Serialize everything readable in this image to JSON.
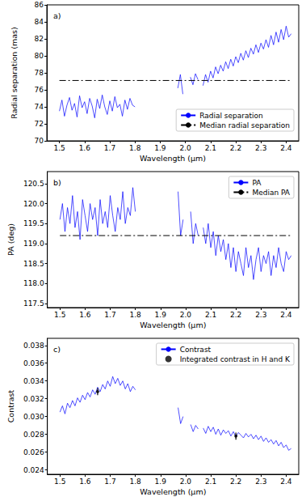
{
  "chart_data": [
    {
      "type": "line",
      "panel_label": "a)",
      "x_label": "Wavelength (μm)",
      "y_label": "Radial separation (mas)",
      "xlim": [
        1.45,
        2.45
      ],
      "xticks": [
        1.5,
        1.6,
        1.7,
        1.8,
        1.9,
        {
          "value": 2.0,
          "label": "2.0"
        },
        2.1,
        2.2,
        2.3,
        2.4
      ],
      "ylim": [
        70,
        86
      ],
      "yticks": [
        70,
        72,
        74,
        76,
        78,
        80,
        82,
        84,
        86
      ],
      "legend": "lower right",
      "grid": false,
      "x": [
        1.5,
        1.51,
        1.52,
        1.53,
        1.54,
        1.55,
        1.56,
        1.57,
        1.58,
        1.59,
        1.6,
        1.61,
        1.62,
        1.63,
        1.64,
        1.65,
        1.66,
        1.67,
        1.68,
        1.69,
        1.7,
        1.71,
        1.72,
        1.73,
        1.74,
        1.75,
        1.76,
        1.77,
        1.78,
        1.79,
        1.8,
        1.81,
        1.97,
        1.98,
        1.99,
        2.0,
        2.02,
        2.03,
        2.04,
        2.05,
        2.06,
        2.07,
        2.08,
        2.09,
        2.1,
        2.11,
        2.12,
        2.13,
        2.14,
        2.15,
        2.16,
        2.17,
        2.18,
        2.19,
        2.2,
        2.21,
        2.22,
        2.23,
        2.24,
        2.25,
        2.26,
        2.27,
        2.28,
        2.29,
        2.3,
        2.31,
        2.32,
        2.33,
        2.34,
        2.35,
        2.36,
        2.37,
        2.38,
        2.39,
        2.4,
        2.41,
        2.42
      ],
      "series": [
        {
          "name": "Radial separation",
          "type": "line",
          "color": "#0000ff",
          "line_style": "solid",
          "values": [
            73.5,
            74.8,
            72.9,
            74.2,
            75.1,
            73.6,
            74.4,
            72.8,
            75.3,
            73.9,
            74.6,
            73.2,
            75.0,
            74.1,
            72.7,
            74.9,
            73.8,
            75.4,
            74.0,
            73.1,
            74.7,
            73.5,
            75.2,
            73.9,
            74.3,
            72.9,
            74.8,
            73.7,
            75.0,
            74.2,
            74.0,
            null,
            76.2,
            77.8,
            75.5,
            null,
            77.5,
            76.6,
            77.9,
            77.2,
            null,
            76.5,
            77.8,
            76.9,
            78.2,
            77.4,
            78.7,
            77.9,
            78.9,
            78.2,
            79.3,
            78.5,
            79.6,
            78.8,
            79.9,
            79.2,
            80.3,
            79.5,
            80.6,
            79.8,
            80.9,
            80.2,
            81.3,
            80.4,
            81.5,
            80.8,
            81.9,
            81.0,
            82.4,
            81.3,
            82.8,
            81.6,
            83.1,
            81.9,
            83.5,
            82.2,
            82.6
          ]
        },
        {
          "name": "Median radial separation",
          "type": "line",
          "color": "#000000",
          "line_style": "dashdot",
          "x": [
            1.5,
            2.42
          ],
          "values": [
            77.1,
            77.1
          ]
        }
      ]
    },
    {
      "type": "line",
      "panel_label": "b)",
      "x_label": "Wavelength (μm)",
      "y_label": "PA (deg)",
      "xlim": [
        1.45,
        2.45
      ],
      "xticks": [
        1.5,
        1.6,
        1.7,
        1.8,
        1.9,
        {
          "value": 2.0,
          "label": "2.0"
        },
        2.1,
        2.2,
        2.3,
        2.4
      ],
      "ylim": [
        117.4,
        120.8
      ],
      "yticks": [
        117.5,
        {
          "value": 118.0,
          "label": "118.0"
        },
        118.5,
        {
          "value": 119.0,
          "label": "119.0"
        },
        119.5,
        {
          "value": 120.0,
          "label": "120.0"
        },
        120.5
      ],
      "legend": "upper right",
      "grid": false,
      "x": [
        1.5,
        1.51,
        1.52,
        1.53,
        1.54,
        1.55,
        1.56,
        1.57,
        1.58,
        1.59,
        1.6,
        1.61,
        1.62,
        1.63,
        1.64,
        1.65,
        1.66,
        1.67,
        1.68,
        1.69,
        1.7,
        1.71,
        1.72,
        1.73,
        1.74,
        1.75,
        1.76,
        1.77,
        1.78,
        1.79,
        1.8,
        1.81,
        1.97,
        1.98,
        1.99,
        2.0,
        2.02,
        2.03,
        2.04,
        2.05,
        2.06,
        2.07,
        2.08,
        2.09,
        2.1,
        2.11,
        2.12,
        2.13,
        2.14,
        2.15,
        2.16,
        2.17,
        2.18,
        2.19,
        2.2,
        2.21,
        2.22,
        2.23,
        2.24,
        2.25,
        2.26,
        2.27,
        2.28,
        2.29,
        2.3,
        2.31,
        2.32,
        2.33,
        2.34,
        2.35,
        2.36,
        2.37,
        2.38,
        2.39,
        2.4,
        2.41,
        2.42
      ],
      "series": [
        {
          "name": "PA",
          "type": "line",
          "color": "#0000ff",
          "line_style": "solid",
          "values": [
            119.6,
            120.0,
            119.3,
            119.9,
            119.5,
            120.2,
            119.4,
            119.8,
            119.1,
            120.1,
            119.7,
            119.3,
            120.0,
            119.6,
            119.9,
            119.2,
            120.1,
            119.5,
            119.8,
            119.4,
            120.2,
            119.7,
            119.3,
            119.9,
            119.6,
            120.3,
            119.5,
            119.9,
            119.7,
            120.4,
            119.8,
            null,
            120.3,
            119.2,
            119.6,
            null,
            119.8,
            119.0,
            119.5,
            119.2,
            null,
            119.4,
            119.0,
            119.5,
            118.9,
            119.3,
            118.7,
            119.2,
            118.8,
            119.1,
            118.6,
            119.0,
            118.4,
            118.9,
            118.3,
            118.8,
            118.5,
            118.2,
            118.9,
            118.4,
            118.7,
            118.1,
            118.6,
            118.9,
            118.3,
            118.7,
            118.5,
            118.8,
            118.2,
            118.7,
            118.4,
            118.9,
            118.5,
            118.3,
            118.8,
            118.6,
            118.7
          ]
        },
        {
          "name": "Median PA",
          "type": "line",
          "color": "#000000",
          "line_style": "dashdot",
          "x": [
            1.5,
            2.42
          ],
          "values": [
            119.2,
            119.2
          ]
        }
      ]
    },
    {
      "type": "line",
      "panel_label": "c)",
      "x_label": "Wavelength (μm)",
      "y_label": "Contrast",
      "xlim": [
        1.45,
        2.45
      ],
      "xticks": [
        1.5,
        1.6,
        1.7,
        1.8,
        1.9,
        {
          "value": 2.0,
          "label": "2.0"
        },
        2.1,
        2.2,
        2.3,
        2.4
      ],
      "ylim": [
        0.0235,
        0.0388
      ],
      "yticks": [
        0.024,
        0.026,
        0.028,
        {
          "value": 0.03,
          "label": "0.030"
        },
        0.032,
        0.034,
        0.036,
        0.038
      ],
      "legend": "upper right",
      "grid": false,
      "x": [
        1.5,
        1.51,
        1.52,
        1.53,
        1.54,
        1.55,
        1.56,
        1.57,
        1.58,
        1.59,
        1.6,
        1.61,
        1.62,
        1.63,
        1.64,
        1.65,
        1.66,
        1.67,
        1.68,
        1.69,
        1.7,
        1.71,
        1.72,
        1.73,
        1.74,
        1.75,
        1.76,
        1.77,
        1.78,
        1.79,
        1.8,
        1.81,
        1.97,
        1.98,
        1.99,
        2.0,
        2.02,
        2.03,
        2.04,
        2.05,
        2.06,
        2.07,
        2.08,
        2.09,
        2.1,
        2.11,
        2.12,
        2.13,
        2.14,
        2.15,
        2.16,
        2.17,
        2.18,
        2.19,
        2.2,
        2.21,
        2.22,
        2.23,
        2.24,
        2.25,
        2.26,
        2.27,
        2.28,
        2.29,
        2.3,
        2.31,
        2.32,
        2.33,
        2.34,
        2.35,
        2.36,
        2.37,
        2.38,
        2.39,
        2.4,
        2.41,
        2.42
      ],
      "series": [
        {
          "name": "Contrast",
          "type": "line",
          "color": "#0000ff",
          "line_style": "solid",
          "values": [
            0.0305,
            0.0312,
            0.0303,
            0.0315,
            0.031,
            0.0318,
            0.0312,
            0.0321,
            0.0316,
            0.0324,
            0.0319,
            0.0327,
            0.0322,
            0.033,
            0.0325,
            0.0333,
            0.0328,
            0.0336,
            0.0331,
            0.034,
            0.0334,
            0.0345,
            0.0337,
            0.0343,
            0.0335,
            0.034,
            0.0331,
            0.0337,
            0.0328,
            0.0334,
            0.033,
            null,
            0.031,
            0.0292,
            0.03,
            null,
            0.0291,
            0.0283,
            0.029,
            0.0286,
            null,
            0.0287,
            0.0281,
            0.0289,
            0.0283,
            0.0288,
            0.028,
            0.0286,
            0.0279,
            0.0285,
            0.0281,
            0.0284,
            0.0278,
            0.0283,
            0.0277,
            0.0282,
            0.0279,
            0.0276,
            0.0281,
            0.0277,
            0.028,
            0.0275,
            0.0279,
            0.0274,
            0.0278,
            0.0272,
            0.0276,
            0.0271,
            0.0274,
            0.0269,
            0.0273,
            0.0267,
            0.0271,
            0.0265,
            0.0268,
            0.0262,
            0.0264
          ]
        },
        {
          "name": "Integrated contrast in H and K",
          "type": "scatter",
          "color": "#000000",
          "marker": "point",
          "x": [
            1.65,
            2.2
          ],
          "values": [
            0.0328,
            0.0278
          ],
          "error": [
            0.0004,
            0.0004
          ]
        }
      ]
    }
  ]
}
